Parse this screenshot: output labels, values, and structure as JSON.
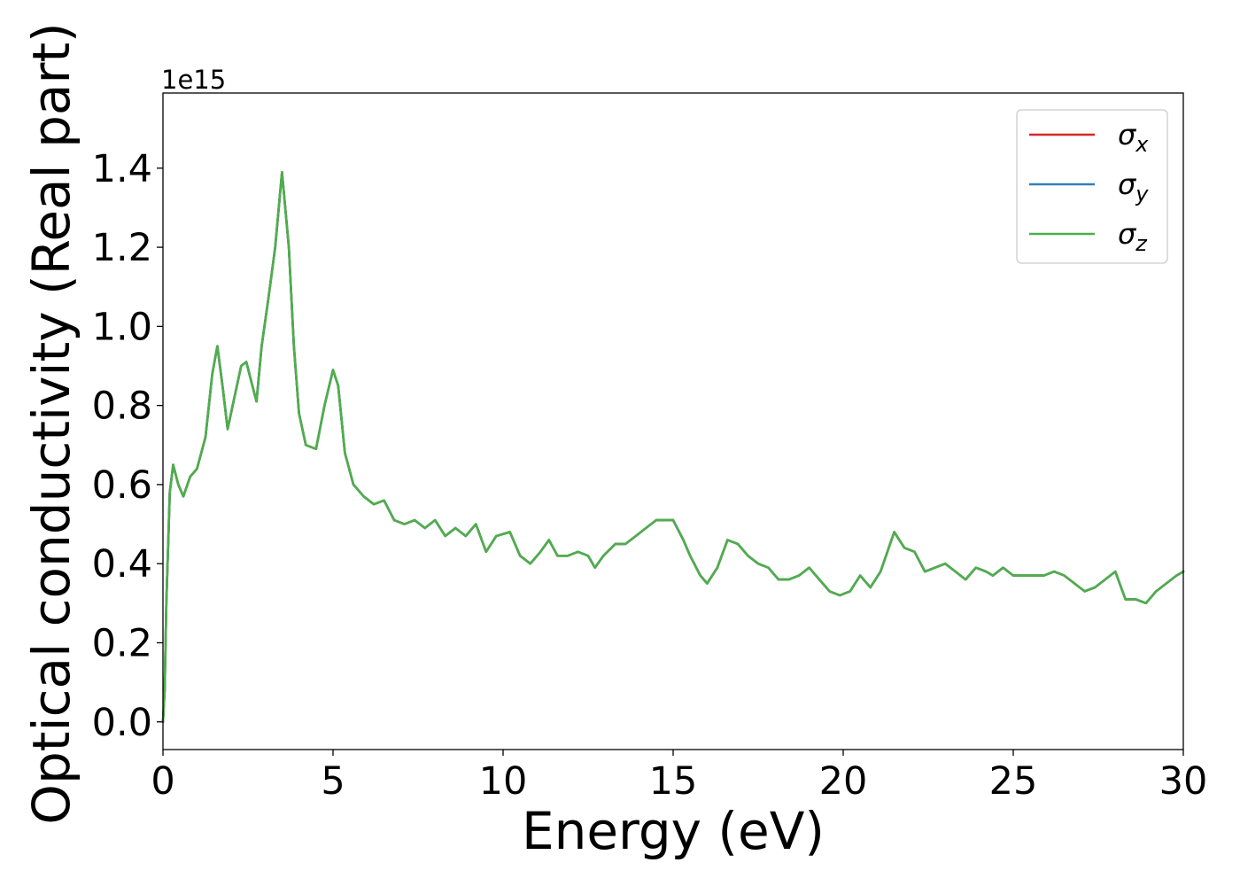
{
  "chart_data": {
    "type": "line",
    "title": "",
    "xlabel": "Energy (eV)",
    "ylabel": "Optical conductivity (Real part)",
    "y_offset_label": "1e15",
    "xlim": [
      0,
      30
    ],
    "ylim": [
      -0.07,
      1.59
    ],
    "x_ticks": [
      0,
      5,
      10,
      15,
      20,
      25,
      30
    ],
    "y_ticks": [
      0.0,
      0.2,
      0.4,
      0.6,
      0.8,
      1.0,
      1.2,
      1.4
    ],
    "y_tick_labels": [
      "0.0",
      "0.2",
      "0.4",
      "0.6",
      "0.8",
      "1.0",
      "1.2",
      "1.4"
    ],
    "grid": false,
    "legend_position": "top-right",
    "x": [
      0.0,
      0.05,
      0.1,
      0.2,
      0.3,
      0.45,
      0.6,
      0.8,
      1.0,
      1.25,
      1.45,
      1.6,
      1.75,
      1.9,
      2.1,
      2.3,
      2.45,
      2.6,
      2.75,
      2.9,
      3.1,
      3.3,
      3.5,
      3.7,
      3.85,
      4.0,
      4.2,
      4.5,
      4.75,
      5.0,
      5.15,
      5.35,
      5.6,
      5.9,
      6.2,
      6.5,
      6.8,
      7.1,
      7.4,
      7.7,
      8.0,
      8.3,
      8.6,
      8.9,
      9.2,
      9.5,
      9.8,
      10.2,
      10.5,
      10.8,
      11.1,
      11.35,
      11.6,
      11.9,
      12.2,
      12.5,
      12.7,
      12.95,
      13.3,
      13.6,
      13.9,
      14.2,
      14.5,
      14.8,
      15.0,
      15.3,
      15.5,
      15.8,
      16.0,
      16.3,
      16.6,
      16.9,
      17.2,
      17.5,
      17.8,
      18.1,
      18.4,
      18.7,
      19.0,
      19.3,
      19.6,
      19.9,
      20.2,
      20.5,
      20.8,
      21.1,
      21.5,
      21.8,
      22.1,
      22.4,
      22.7,
      23.0,
      23.3,
      23.6,
      23.9,
      24.2,
      24.4,
      24.7,
      25.0,
      25.3,
      25.6,
      25.9,
      26.2,
      26.5,
      26.8,
      27.1,
      27.4,
      27.7,
      28.0,
      28.3,
      28.6,
      28.9,
      29.2,
      29.5,
      29.8,
      30.0
    ],
    "series": [
      {
        "name": "σx",
        "color": "#d62728",
        "values": [
          0.0,
          0.08,
          0.3,
          0.58,
          0.65,
          0.6,
          0.57,
          0.62,
          0.64,
          0.72,
          0.88,
          0.95,
          0.85,
          0.74,
          0.82,
          0.9,
          0.91,
          0.86,
          0.81,
          0.95,
          1.07,
          1.2,
          1.39,
          1.2,
          0.95,
          0.78,
          0.7,
          0.69,
          0.8,
          0.89,
          0.85,
          0.68,
          0.6,
          0.57,
          0.55,
          0.56,
          0.51,
          0.5,
          0.51,
          0.49,
          0.51,
          0.47,
          0.49,
          0.47,
          0.5,
          0.43,
          0.47,
          0.48,
          0.42,
          0.4,
          0.43,
          0.46,
          0.42,
          0.42,
          0.43,
          0.42,
          0.39,
          0.42,
          0.45,
          0.45,
          0.47,
          0.49,
          0.51,
          0.51,
          0.51,
          0.46,
          0.42,
          0.37,
          0.35,
          0.39,
          0.46,
          0.45,
          0.42,
          0.4,
          0.39,
          0.36,
          0.36,
          0.37,
          0.39,
          0.36,
          0.33,
          0.32,
          0.33,
          0.37,
          0.34,
          0.38,
          0.48,
          0.44,
          0.43,
          0.38,
          0.39,
          0.4,
          0.38,
          0.36,
          0.39,
          0.38,
          0.37,
          0.39,
          0.37,
          0.37,
          0.37,
          0.37,
          0.38,
          0.37,
          0.35,
          0.33,
          0.34,
          0.36,
          0.38,
          0.31,
          0.31,
          0.3,
          0.33,
          0.35,
          0.37,
          0.38
        ]
      },
      {
        "name": "σy",
        "color": "#377eb8",
        "values": [
          0.0,
          0.08,
          0.3,
          0.58,
          0.65,
          0.6,
          0.57,
          0.62,
          0.64,
          0.72,
          0.88,
          0.95,
          0.85,
          0.74,
          0.82,
          0.9,
          0.91,
          0.86,
          0.81,
          0.95,
          1.07,
          1.2,
          1.39,
          1.2,
          0.95,
          0.78,
          0.7,
          0.69,
          0.8,
          0.89,
          0.85,
          0.68,
          0.6,
          0.57,
          0.55,
          0.56,
          0.51,
          0.5,
          0.51,
          0.49,
          0.51,
          0.47,
          0.49,
          0.47,
          0.5,
          0.43,
          0.47,
          0.48,
          0.42,
          0.4,
          0.43,
          0.46,
          0.42,
          0.42,
          0.43,
          0.42,
          0.39,
          0.42,
          0.45,
          0.45,
          0.47,
          0.49,
          0.51,
          0.51,
          0.51,
          0.46,
          0.42,
          0.37,
          0.35,
          0.39,
          0.46,
          0.45,
          0.42,
          0.4,
          0.39,
          0.36,
          0.36,
          0.37,
          0.39,
          0.36,
          0.33,
          0.32,
          0.33,
          0.37,
          0.34,
          0.38,
          0.48,
          0.44,
          0.43,
          0.38,
          0.39,
          0.4,
          0.38,
          0.36,
          0.39,
          0.38,
          0.37,
          0.39,
          0.37,
          0.37,
          0.37,
          0.37,
          0.38,
          0.37,
          0.35,
          0.33,
          0.34,
          0.36,
          0.38,
          0.31,
          0.31,
          0.3,
          0.33,
          0.35,
          0.37,
          0.38
        ]
      },
      {
        "name": "σz",
        "color": "#4daf4a",
        "values": [
          0.0,
          0.08,
          0.3,
          0.58,
          0.65,
          0.6,
          0.57,
          0.62,
          0.64,
          0.72,
          0.88,
          0.95,
          0.85,
          0.74,
          0.82,
          0.9,
          0.91,
          0.86,
          0.81,
          0.95,
          1.07,
          1.2,
          1.39,
          1.2,
          0.95,
          0.78,
          0.7,
          0.69,
          0.8,
          0.89,
          0.85,
          0.68,
          0.6,
          0.57,
          0.55,
          0.56,
          0.51,
          0.5,
          0.51,
          0.49,
          0.51,
          0.47,
          0.49,
          0.47,
          0.5,
          0.43,
          0.47,
          0.48,
          0.42,
          0.4,
          0.43,
          0.46,
          0.42,
          0.42,
          0.43,
          0.42,
          0.39,
          0.42,
          0.45,
          0.45,
          0.47,
          0.49,
          0.51,
          0.51,
          0.51,
          0.46,
          0.42,
          0.37,
          0.35,
          0.39,
          0.46,
          0.45,
          0.42,
          0.4,
          0.39,
          0.36,
          0.36,
          0.37,
          0.39,
          0.36,
          0.33,
          0.32,
          0.33,
          0.37,
          0.34,
          0.38,
          0.48,
          0.44,
          0.43,
          0.38,
          0.39,
          0.4,
          0.38,
          0.36,
          0.39,
          0.38,
          0.37,
          0.39,
          0.37,
          0.37,
          0.37,
          0.37,
          0.38,
          0.37,
          0.35,
          0.33,
          0.34,
          0.36,
          0.38,
          0.31,
          0.31,
          0.3,
          0.33,
          0.35,
          0.37,
          0.38
        ]
      }
    ],
    "legend": [
      {
        "symbol": "σ",
        "sub": "x",
        "color": "#d62728"
      },
      {
        "symbol": "σ",
        "sub": "y",
        "color": "#377eb8"
      },
      {
        "symbol": "σ",
        "sub": "z",
        "color": "#4daf4a"
      }
    ]
  }
}
